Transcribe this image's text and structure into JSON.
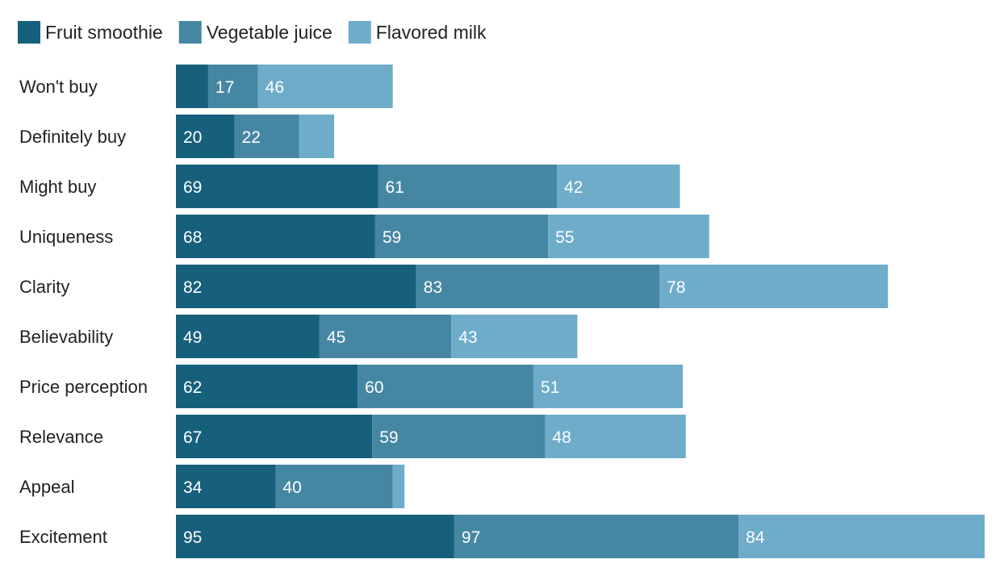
{
  "chart_data": {
    "type": "bar",
    "orientation": "horizontal",
    "stacked": true,
    "categories": [
      "Won't buy",
      "Definitely buy",
      "Might buy",
      "Uniqueness",
      "Clarity",
      "Believability",
      "Price perception",
      "Relevance",
      "Appeal",
      "Excitement"
    ],
    "series": [
      {
        "name": "Fruit smoothie",
        "color": "#17607c",
        "values": [
          11,
          20,
          69,
          68,
          82,
          49,
          62,
          67,
          34,
          95
        ]
      },
      {
        "name": "Vegetable juice",
        "color": "#4587a3",
        "values": [
          17,
          22,
          61,
          59,
          83,
          45,
          60,
          59,
          40,
          97
        ]
      },
      {
        "name": "Flavored milk",
        "color": "#6eacca",
        "values": [
          46,
          12,
          42,
          55,
          78,
          43,
          51,
          48,
          4,
          84
        ]
      }
    ],
    "data_label_min": 15,
    "xlim": [
      0,
      276
    ],
    "title": "",
    "xlabel": "",
    "ylabel": "",
    "legend_position": "top-left",
    "grid": false
  }
}
